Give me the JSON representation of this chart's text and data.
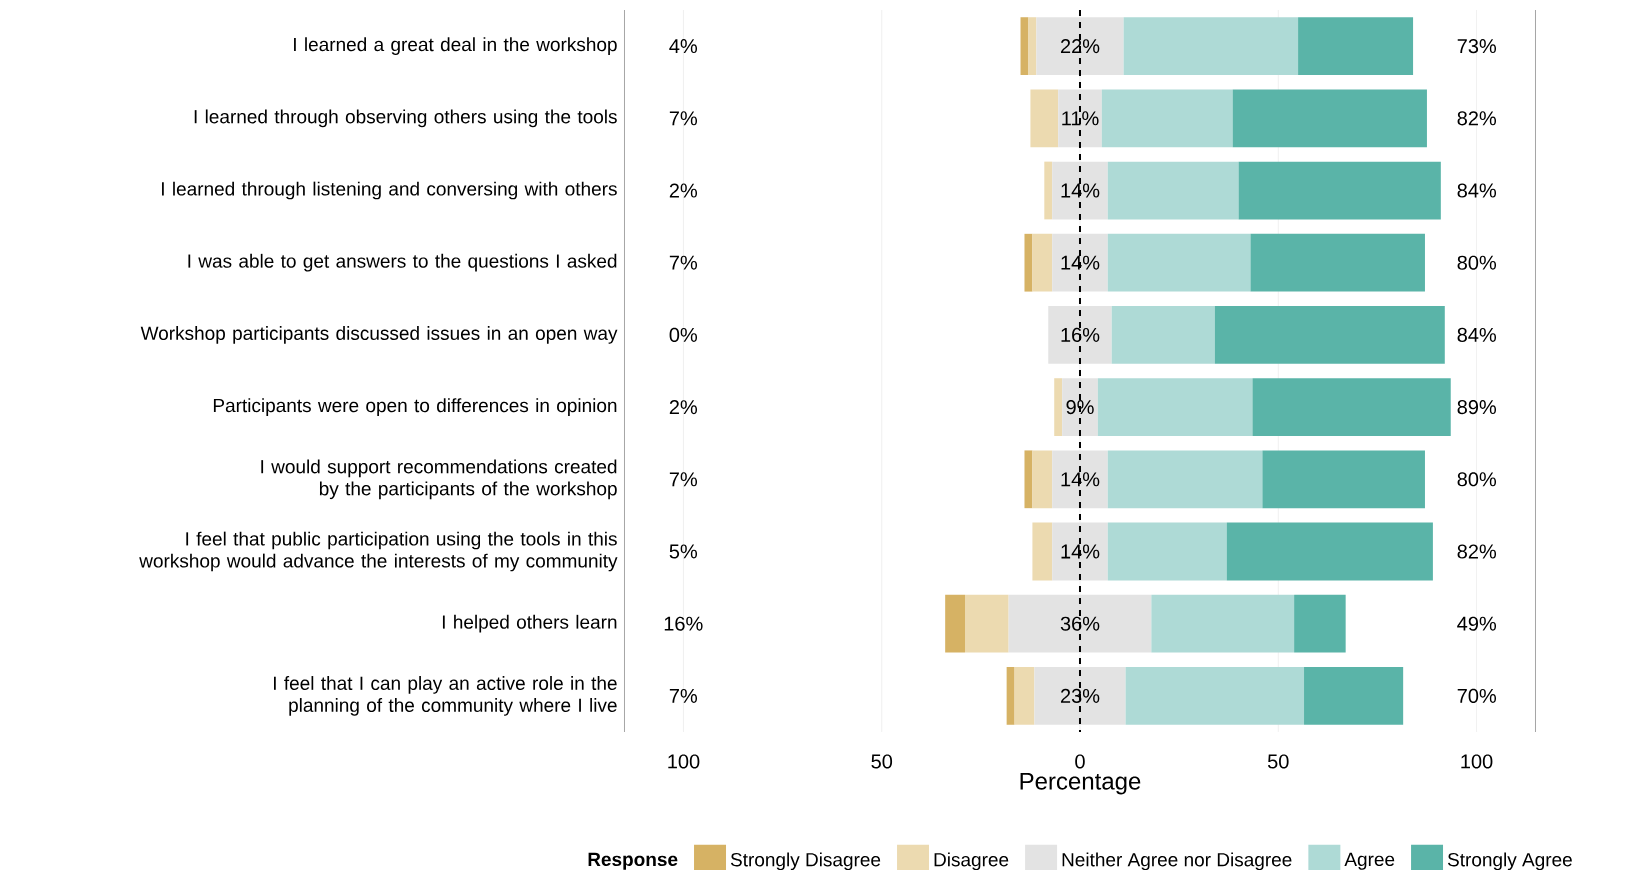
{
  "chart_data": {
    "type": "bar",
    "orientation": "horizontal",
    "xlabel": "Percentage",
    "legend_title": "Response",
    "legend": "bottom",
    "grid": "x",
    "categories": [
      "I learned a great deal in the workshop",
      "I learned through observing others using the tools",
      "I learned through listening and conversing with others",
      "I was able to get answers to the questions I asked",
      "Workshop participants discussed issues in an open way",
      "Participants were open to differences in opinion",
      "I would support recommendations created by the participants of the workshop",
      "I feel that public participation using the tools in this workshop would advance the interests of my community",
      "I helped others learn",
      "I feel that I can play an active role in the planning of the community where I live"
    ],
    "xlim": [
      -115,
      115
    ],
    "xticks": [
      {
        "value": -100,
        "label": "100"
      },
      {
        "value": -50,
        "label": "50"
      },
      0,
      50,
      100
    ],
    "series": [
      {
        "name": "Strongly Disagree",
        "color": "#d6b264",
        "values": [
          2,
          null,
          null,
          2,
          null,
          null,
          2,
          null,
          5,
          2
        ],
        "base": [
          -15,
          null,
          null,
          -14,
          null,
          null,
          -14,
          null,
          -34,
          -18.5
        ]
      },
      {
        "name": "Disagree",
        "color": "#ecdab0",
        "values": [
          2,
          7,
          2,
          5,
          null,
          2,
          5,
          5,
          11,
          5
        ],
        "base": [
          -13,
          -12.5,
          -9,
          -12,
          null,
          -6.5,
          -12,
          -12,
          -29,
          -16.5
        ]
      },
      {
        "name": "Neither Agree nor Disagree",
        "color": "#e3e3e3",
        "values": [
          22,
          11,
          14,
          14,
          16,
          9,
          14,
          14,
          36,
          23
        ],
        "base": [
          -11,
          -5.5,
          -7,
          -7,
          -8,
          -4.5,
          -7,
          -7,
          -18,
          -11.5
        ],
        "value_labels": [
          "22%",
          "11%",
          "14%",
          "14%",
          "16%",
          "9%",
          "14%",
          "14%",
          "36%",
          "23%"
        ]
      },
      {
        "name": "Agree",
        "color": "#aedad6",
        "values": [
          44,
          33,
          33,
          36,
          26,
          39,
          39,
          30,
          36,
          45
        ],
        "base": [
          11,
          5.5,
          7,
          7,
          8,
          4.5,
          7,
          7,
          18,
          11.5
        ]
      },
      {
        "name": "Strongly Agree",
        "color": "#5ab4a8",
        "values": [
          29,
          49,
          51,
          44,
          58,
          50,
          41,
          52,
          13,
          25
        ],
        "base": [
          55,
          38.5,
          40,
          43,
          34,
          43.5,
          46,
          37,
          54,
          56.5
        ]
      }
    ],
    "ref_lines": [
      {
        "axis": "x",
        "value": 0,
        "color": "#000000",
        "line_style": "dashed"
      }
    ],
    "annotations": [
      "4%",
      "73%",
      "7%",
      "82%",
      "2%",
      "84%",
      "7%",
      "80%",
      "0%",
      "84%",
      "2%",
      "89%",
      "7%",
      "80%",
      "5%",
      "82%",
      "16%",
      "49%",
      "7%",
      "70%"
    ]
  }
}
